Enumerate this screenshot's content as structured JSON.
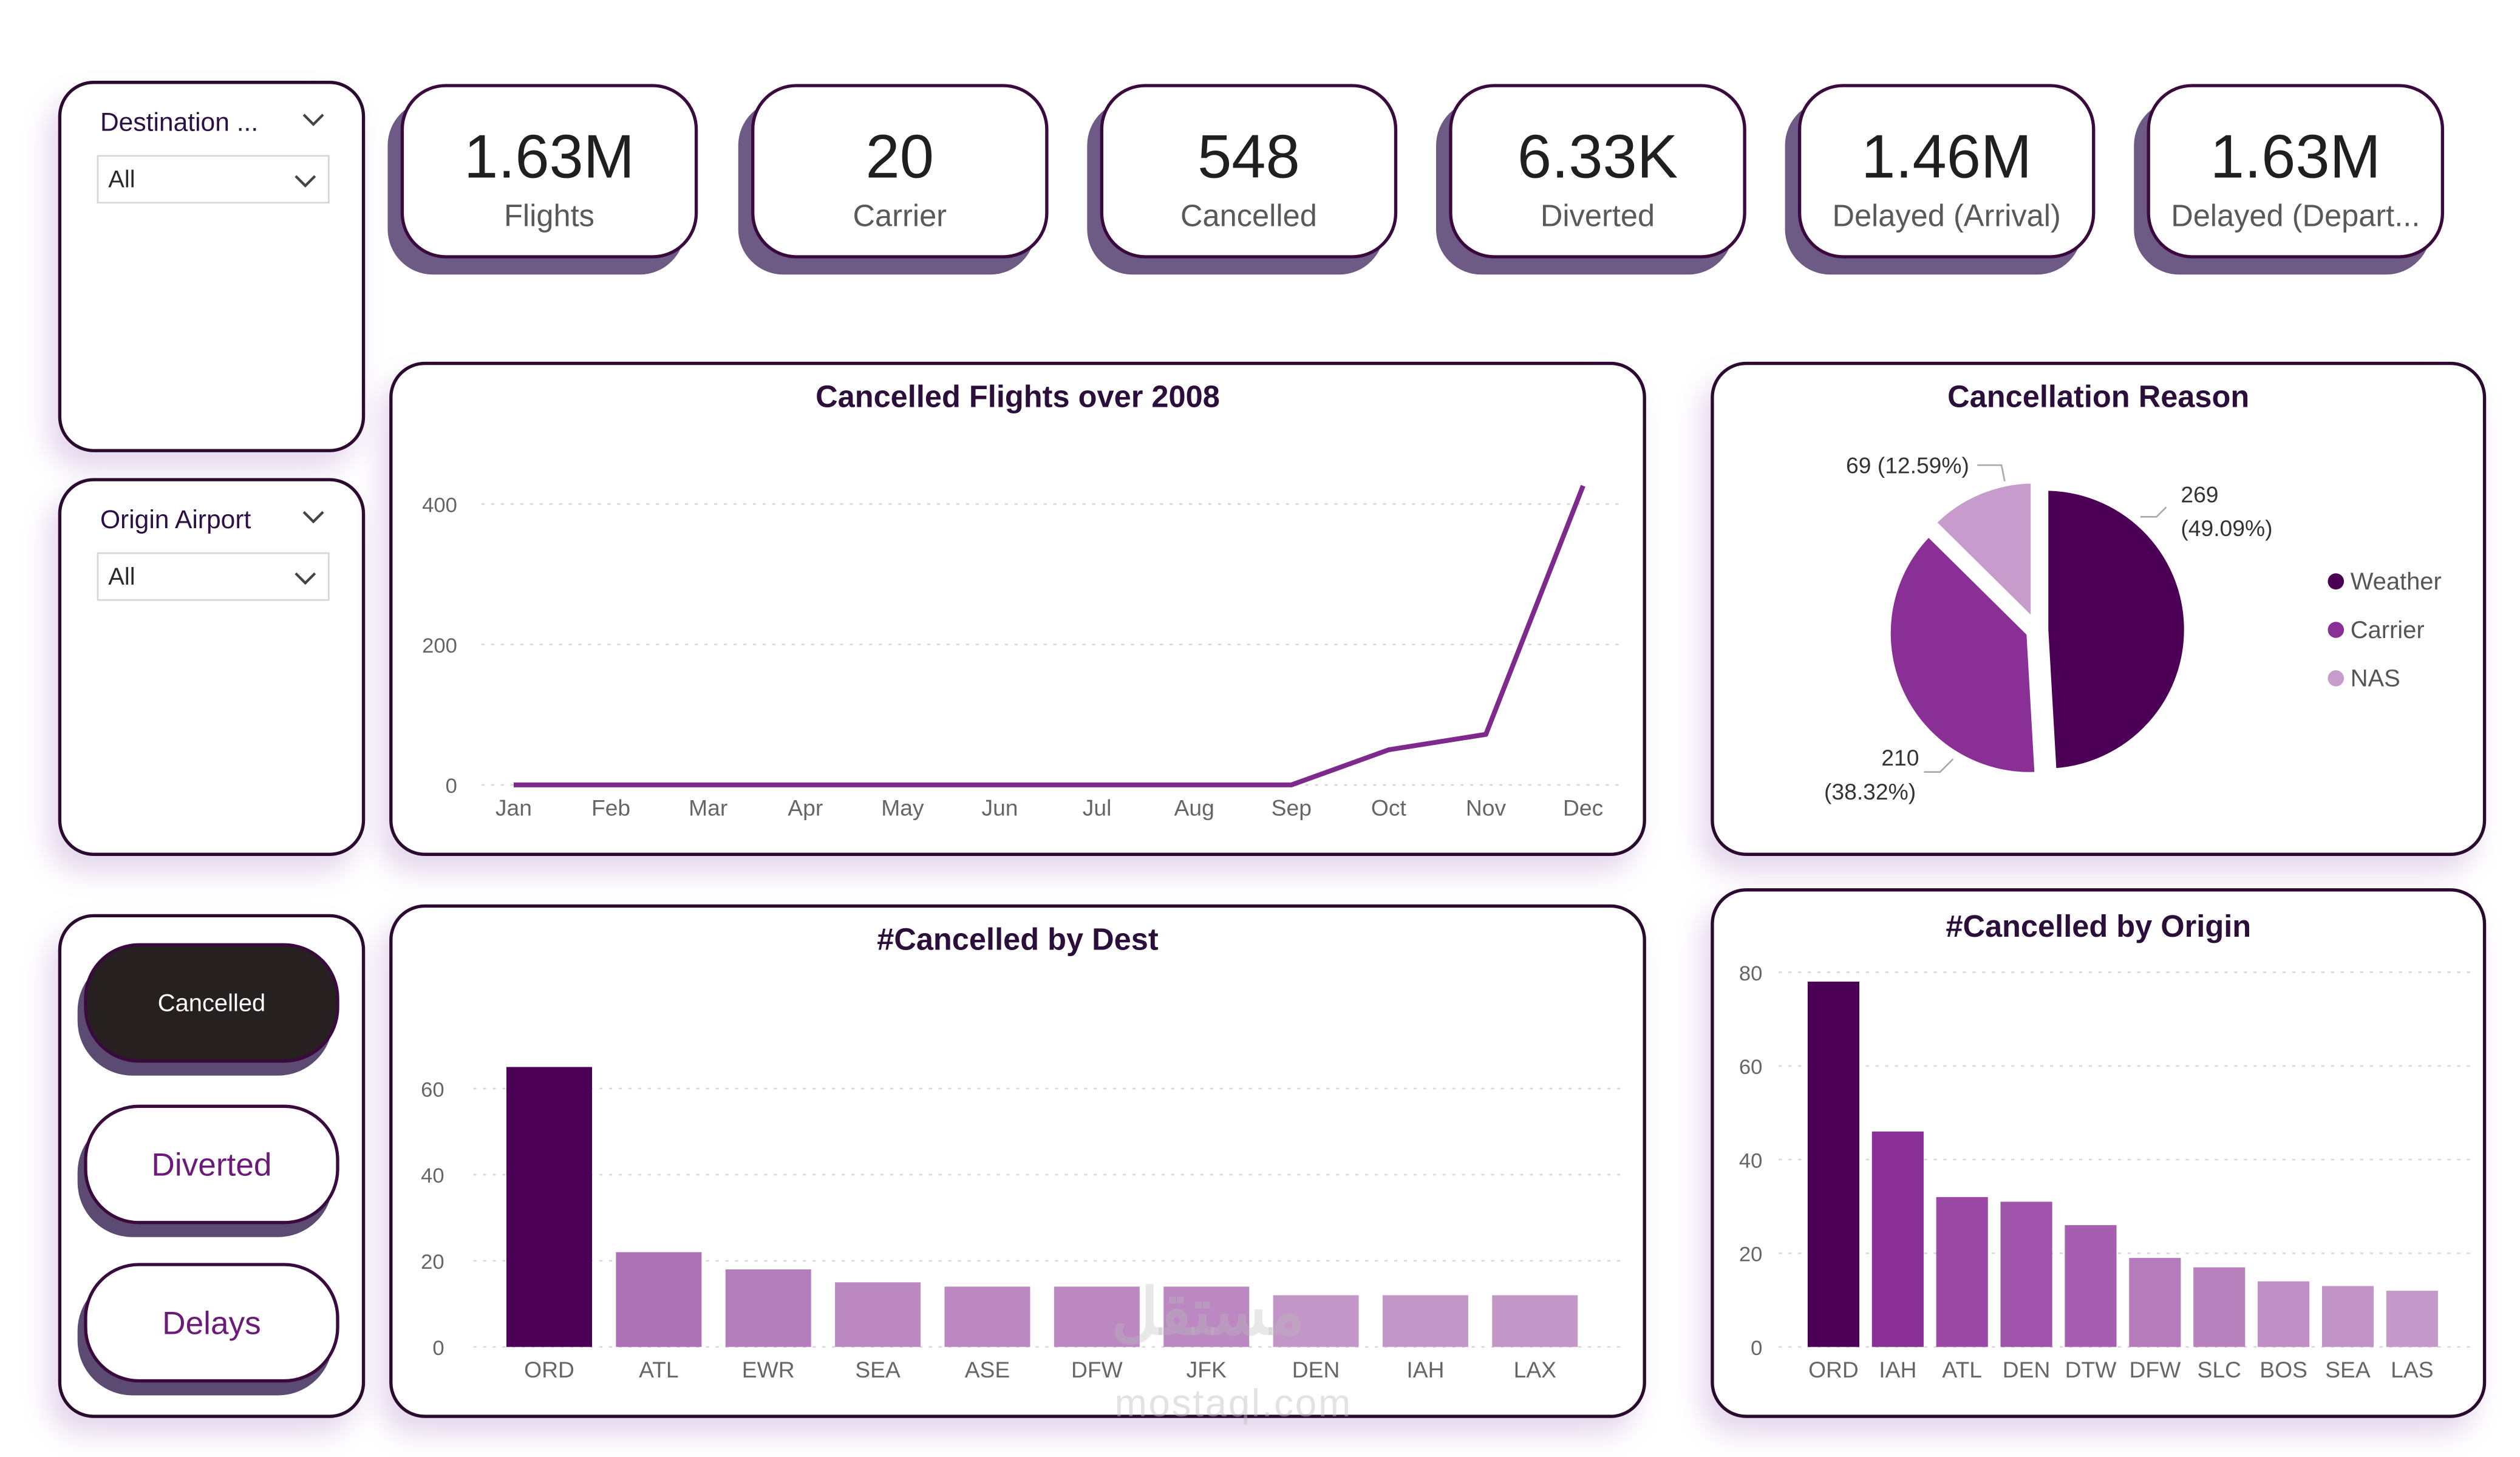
{
  "kpis": [
    {
      "value": "1.63M",
      "label": "Flights"
    },
    {
      "value": "20",
      "label": "Carrier"
    },
    {
      "value": "548",
      "label": "Cancelled"
    },
    {
      "value": "6.33K",
      "label": "Diverted"
    },
    {
      "value": "1.46M",
      "label": "Delayed (Arrival)"
    },
    {
      "value": "1.63M",
      "label": "Delayed (Depart..."
    }
  ],
  "slicers": {
    "destination": {
      "title": "Destination ...",
      "value": "All"
    },
    "origin": {
      "title": "Origin Airport",
      "value": "All"
    }
  },
  "buttons": [
    {
      "label": "Cancelled",
      "active": true
    },
    {
      "label": "Diverted",
      "active": false
    },
    {
      "label": "Delays",
      "active": false
    }
  ],
  "watermark": {
    "arabic": "مستقل",
    "latin": "mostaql.com"
  },
  "colors": {
    "dark_purple": "#4b0055",
    "mid_purple": "#8a2f96",
    "light_purple": "#c79ccd",
    "line": "#7d2a8c"
  },
  "chart_data": [
    {
      "type": "line",
      "title": "Cancelled Flights over 2008",
      "categories": [
        "Jan",
        "Feb",
        "Mar",
        "Apr",
        "May",
        "Jun",
        "Jul",
        "Aug",
        "Sep",
        "Oct",
        "Nov",
        "Dec"
      ],
      "values": [
        0,
        0,
        0,
        0,
        0,
        0,
        0,
        0,
        0,
        50,
        72,
        426
      ],
      "yticks": [
        0,
        200,
        400
      ],
      "ylim": [
        0,
        460
      ]
    },
    {
      "type": "pie",
      "title": "Cancellation Reason",
      "slices": [
        {
          "name": "Weather",
          "value": 269,
          "label": "269 (49.09%)",
          "color": "#4b0055"
        },
        {
          "name": "Carrier",
          "value": 210,
          "label": "210 (38.32%)",
          "color": "#8a2f96"
        },
        {
          "name": "NAS",
          "value": 69,
          "label": "69 (12.59%)",
          "color": "#c79ccd"
        }
      ],
      "legend": "right"
    },
    {
      "type": "bar",
      "title": "#Cancelled by Dest",
      "categories": [
        "ORD",
        "ATL",
        "EWR",
        "SEA",
        "ASE",
        "DFW",
        "JFK",
        "DEN",
        "IAH",
        "LAX"
      ],
      "values": [
        65,
        22,
        18,
        15,
        14,
        14,
        14,
        12,
        12,
        12
      ],
      "yticks": [
        0,
        20,
        40,
        60
      ],
      "ylim": [
        0,
        72
      ]
    },
    {
      "type": "bar",
      "title": "#Cancelled by Origin",
      "categories": [
        "ORD",
        "IAH",
        "ATL",
        "DEN",
        "DTW",
        "DFW",
        "SLC",
        "BOS",
        "SEA",
        "LAS"
      ],
      "values": [
        78,
        46,
        32,
        31,
        26,
        19,
        17,
        14,
        13,
        12
      ],
      "yticks": [
        0,
        20,
        40,
        60,
        80
      ],
      "ylim": [
        0,
        80
      ]
    }
  ]
}
